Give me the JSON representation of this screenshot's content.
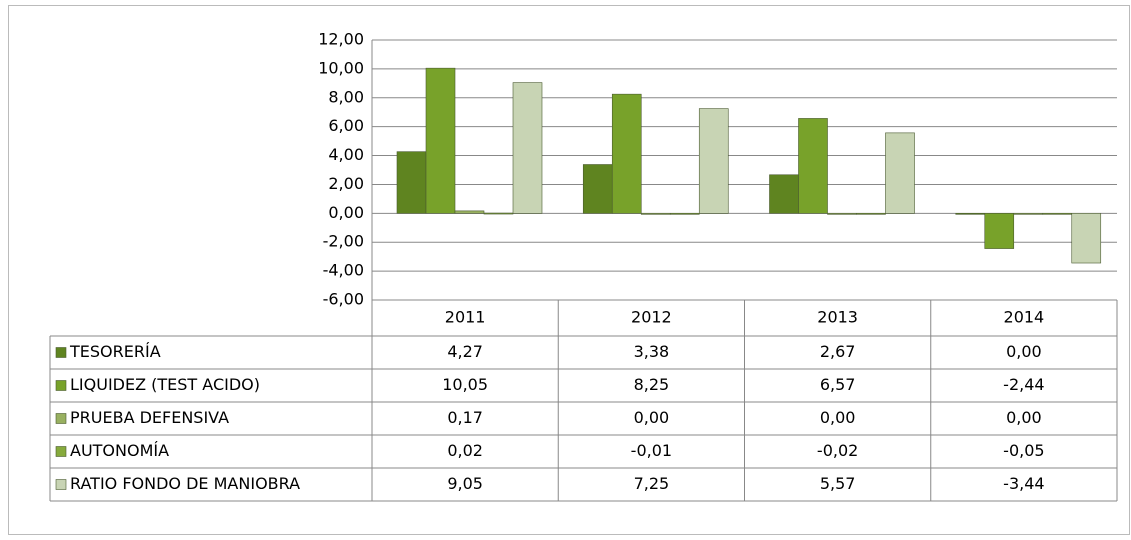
{
  "chart_data": {
    "type": "bar",
    "categories": [
      "2011",
      "2012",
      "2013",
      "2014"
    ],
    "series": [
      {
        "name": "TESORERÍA",
        "color": "#5f8420",
        "values": [
          4.27,
          3.38,
          2.67,
          0.0
        ],
        "value_labels": [
          "4,27",
          "3,38",
          "2,67",
          "0,00"
        ]
      },
      {
        "name": "LIQUIDEZ (TEST ACIDO)",
        "color": "#78a22a",
        "values": [
          10.05,
          8.25,
          6.57,
          -2.44
        ],
        "value_labels": [
          "10,05",
          "8,25",
          "6,57",
          "-2,44"
        ]
      },
      {
        "name": "PRUEBA DEFENSIVA",
        "color": "#98b060",
        "values": [
          0.17,
          0.0,
          0.0,
          0.0
        ],
        "value_labels": [
          "0,17",
          "0,00",
          "0,00",
          "0,00"
        ]
      },
      {
        "name": "AUTONOMÍA",
        "color": "#86aa3c",
        "values": [
          0.02,
          -0.01,
          -0.02,
          -0.05
        ],
        "value_labels": [
          "0,02",
          "-0,01",
          "-0,02",
          "-0,05"
        ]
      },
      {
        "name": "RATIO FONDO DE MANIOBRA",
        "color": "#c8d4b4",
        "values": [
          9.05,
          7.25,
          5.57,
          -3.44
        ],
        "value_labels": [
          "9,05",
          "7,25",
          "5,57",
          "-3,44"
        ]
      }
    ],
    "ylim": [
      -6,
      12
    ],
    "yticks": [
      {
        "value": -6,
        "label": "-6,00"
      },
      {
        "value": -4,
        "label": "-4,00"
      },
      {
        "value": -2,
        "label": "-2,00"
      },
      {
        "value": 0,
        "label": "0,00"
      },
      {
        "value": 2,
        "label": "2,00"
      },
      {
        "value": 4,
        "label": "4,00"
      },
      {
        "value": 6,
        "label": "6,00"
      },
      {
        "value": 8,
        "label": "8,00"
      },
      {
        "value": 10,
        "label": "10,00"
      },
      {
        "value": 12,
        "label": "12,00"
      }
    ],
    "grid": true
  }
}
